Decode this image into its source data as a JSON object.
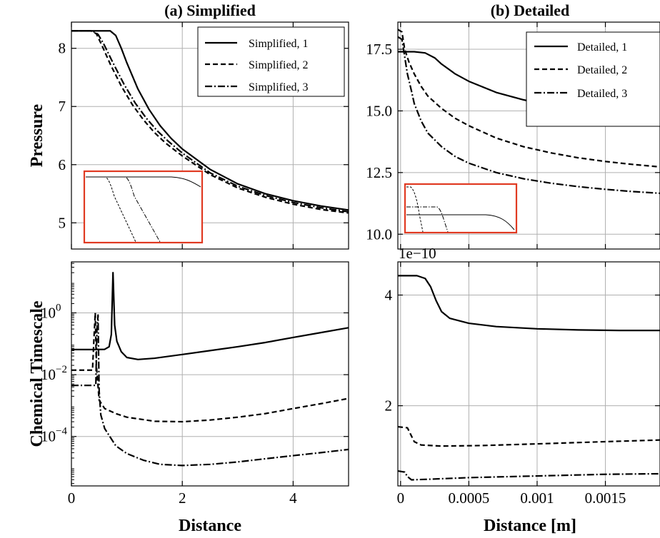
{
  "chart_data": [
    {
      "id": "p1",
      "type": "line",
      "title": "(a) Simplified",
      "xlabel": "",
      "ylabel": "Pressure",
      "xlim": [
        0,
        5
      ],
      "ylim": [
        4.55,
        8.45
      ],
      "xticks": [
        0,
        2,
        4
      ],
      "xtick_labels": [
        "",
        "",
        ""
      ],
      "yticks": [
        5,
        6,
        7,
        8
      ],
      "ytick_labels": [
        "5",
        "6",
        "7",
        "8"
      ],
      "yscale": "linear",
      "grid": true,
      "legend_position": "top-right",
      "series": [
        {
          "name": "Simplified, 1",
          "style": "solid",
          "points": [
            [
              0,
              8.3
            ],
            [
              0.5,
              8.3
            ],
            [
              0.7,
              8.3
            ],
            [
              0.8,
              8.22
            ],
            [
              0.9,
              8.0
            ],
            [
              1.0,
              7.75
            ],
            [
              1.2,
              7.3
            ],
            [
              1.4,
              6.95
            ],
            [
              1.6,
              6.67
            ],
            [
              1.8,
              6.45
            ],
            [
              2.0,
              6.27
            ],
            [
              2.5,
              5.92
            ],
            [
              3.0,
              5.67
            ],
            [
              3.5,
              5.5
            ],
            [
              4.0,
              5.38
            ],
            [
              4.5,
              5.29
            ],
            [
              5.0,
              5.22
            ]
          ]
        },
        {
          "name": "Simplified, 2",
          "style": "dashed",
          "points": [
            [
              0,
              8.3
            ],
            [
              0.35,
              8.3
            ],
            [
              0.45,
              8.25
            ],
            [
              0.55,
              8.05
            ],
            [
              0.7,
              7.73
            ],
            [
              0.9,
              7.35
            ],
            [
              1.1,
              7.03
            ],
            [
              1.3,
              6.77
            ],
            [
              1.5,
              6.55
            ],
            [
              1.7,
              6.37
            ],
            [
              2.0,
              6.15
            ],
            [
              2.5,
              5.83
            ],
            [
              3.0,
              5.6
            ],
            [
              3.5,
              5.44
            ],
            [
              4.0,
              5.32
            ],
            [
              4.5,
              5.23
            ],
            [
              5.0,
              5.17
            ]
          ]
        },
        {
          "name": "Simplified, 3",
          "style": "dashdot",
          "points": [
            [
              0,
              8.3
            ],
            [
              0.38,
              8.3
            ],
            [
              0.48,
              8.24
            ],
            [
              0.58,
              8.08
            ],
            [
              0.75,
              7.75
            ],
            [
              0.95,
              7.38
            ],
            [
              1.15,
              7.06
            ],
            [
              1.35,
              6.8
            ],
            [
              1.55,
              6.58
            ],
            [
              1.75,
              6.4
            ],
            [
              2.0,
              6.2
            ],
            [
              2.5,
              5.86
            ],
            [
              3.0,
              5.63
            ],
            [
              3.5,
              5.47
            ],
            [
              4.0,
              5.35
            ],
            [
              4.5,
              5.26
            ],
            [
              5.0,
              5.19
            ]
          ]
        }
      ]
    },
    {
      "id": "p2",
      "type": "line",
      "title": "(b) Detailed",
      "xlabel": "",
      "ylabel": "",
      "xlim": [
        -2e-05,
        0.0019
      ],
      "ylim": [
        9.4,
        18.6
      ],
      "xticks": [
        0,
        0.0005,
        0.001,
        0.0015
      ],
      "xtick_labels": [
        "",
        "",
        "",
        ""
      ],
      "yticks": [
        10.0,
        12.5,
        15.0,
        17.5
      ],
      "ytick_labels": [
        "10.0",
        "12.5",
        "15.0",
        "17.5"
      ],
      "yscale": "linear",
      "grid": true,
      "legend_position": "top-right",
      "series": [
        {
          "name": "Detailed, 1",
          "style": "solid",
          "points": [
            [
              -2e-05,
              17.4
            ],
            [
              0.0001,
              17.4
            ],
            [
              0.00018,
              17.35
            ],
            [
              0.00025,
              17.15
            ],
            [
              0.0003,
              16.9
            ],
            [
              0.0004,
              16.5
            ],
            [
              0.0005,
              16.2
            ],
            [
              0.0007,
              15.75
            ],
            [
              0.0009,
              15.45
            ],
            [
              0.0011,
              15.2
            ],
            [
              0.0013,
              15.0
            ],
            [
              0.0015,
              14.82
            ],
            [
              0.0017,
              14.67
            ],
            [
              0.0019,
              14.55
            ]
          ]
        },
        {
          "name": "Detailed, 2",
          "style": "dashed",
          "points": [
            [
              -2e-05,
              18.3
            ],
            [
              1e-05,
              18.2
            ],
            [
              3e-05,
              17.5
            ],
            [
              6e-05,
              17.0
            ],
            [
              0.0001,
              16.5
            ],
            [
              0.00015,
              16.0
            ],
            [
              0.0002,
              15.6
            ],
            [
              0.0003,
              15.1
            ],
            [
              0.0004,
              14.7
            ],
            [
              0.0005,
              14.4
            ],
            [
              0.0007,
              13.9
            ],
            [
              0.0009,
              13.55
            ],
            [
              0.0011,
              13.3
            ],
            [
              0.0013,
              13.1
            ],
            [
              0.0015,
              12.95
            ],
            [
              0.0017,
              12.83
            ],
            [
              0.0019,
              12.73
            ]
          ]
        },
        {
          "name": "Detailed, 3",
          "style": "dashdot",
          "points": [
            [
              -2e-05,
              18.0
            ],
            [
              1e-05,
              17.9
            ],
            [
              3e-05,
              17.2
            ],
            [
              5e-05,
              16.5
            ],
            [
              8e-05,
              15.8
            ],
            [
              0.0001,
              15.3
            ],
            [
              0.00015,
              14.6
            ],
            [
              0.0002,
              14.1
            ],
            [
              0.0003,
              13.55
            ],
            [
              0.0004,
              13.15
            ],
            [
              0.0005,
              12.88
            ],
            [
              0.0007,
              12.5
            ],
            [
              0.0009,
              12.25
            ],
            [
              0.0011,
              12.07
            ],
            [
              0.0013,
              11.93
            ],
            [
              0.0015,
              11.82
            ],
            [
              0.0017,
              11.73
            ],
            [
              0.0019,
              11.66
            ]
          ]
        }
      ]
    },
    {
      "id": "p3",
      "type": "line",
      "title": "",
      "xlabel": "Distance",
      "ylabel": "Chemical Timescale",
      "xlim": [
        0,
        5
      ],
      "ylim_log10": [
        -5.6,
        1.65
      ],
      "xticks": [
        0,
        2,
        4
      ],
      "xtick_labels": [
        "0",
        "2",
        "4"
      ],
      "yticks_log10": [
        -4,
        -2,
        0
      ],
      "ytick_labels": [
        "10",
        "10",
        "10"
      ],
      "ytick_exponents": [
        "−4",
        "−2",
        "0"
      ],
      "yscale": "log",
      "grid": true,
      "series": [
        {
          "name": "",
          "style": "solid",
          "points": [
            [
              0,
              0.065
            ],
            [
              0.45,
              0.065
            ],
            [
              0.6,
              0.066
            ],
            [
              0.68,
              0.08
            ],
            [
              0.72,
              0.2
            ],
            [
              0.75,
              20
            ],
            [
              0.78,
              0.4
            ],
            [
              0.82,
              0.12
            ],
            [
              0.9,
              0.055
            ],
            [
              1.0,
              0.036
            ],
            [
              1.2,
              0.031
            ],
            [
              1.5,
              0.034
            ],
            [
              2.0,
              0.045
            ],
            [
              2.5,
              0.06
            ],
            [
              3.0,
              0.08
            ],
            [
              3.5,
              0.11
            ],
            [
              4.0,
              0.16
            ],
            [
              4.5,
              0.23
            ],
            [
              5.0,
              0.33
            ]
          ]
        },
        {
          "name": "",
          "style": "dashed",
          "points": [
            [
              0,
              0.014
            ],
            [
              0.38,
              0.014
            ],
            [
              0.41,
              0.2
            ],
            [
              0.43,
              1.0
            ],
            [
              0.45,
              0.02
            ],
            [
              0.5,
              0.0015
            ],
            [
              0.6,
              0.0008
            ],
            [
              0.8,
              0.00055
            ],
            [
              1.0,
              0.00042
            ],
            [
              1.5,
              0.00031
            ],
            [
              2.0,
              0.0003
            ],
            [
              2.5,
              0.00034
            ],
            [
              3.0,
              0.00042
            ],
            [
              3.5,
              0.00055
            ],
            [
              4.0,
              0.0008
            ],
            [
              4.5,
              0.00115
            ],
            [
              5.0,
              0.0017
            ]
          ]
        },
        {
          "name": "",
          "style": "dashdot",
          "points": [
            [
              0,
              0.0045
            ],
            [
              0.44,
              0.0045
            ],
            [
              0.46,
              0.3
            ],
            [
              0.48,
              0.85
            ],
            [
              0.5,
              0.003
            ],
            [
              0.53,
              0.0005
            ],
            [
              0.6,
              0.00018
            ],
            [
              0.8,
              5e-05
            ],
            [
              1.0,
              2.8e-05
            ],
            [
              1.3,
              1.7e-05
            ],
            [
              1.6,
              1.25e-05
            ],
            [
              2.0,
              1.15e-05
            ],
            [
              2.5,
              1.25e-05
            ],
            [
              3.0,
              1.5e-05
            ],
            [
              3.5,
              1.9e-05
            ],
            [
              4.0,
              2.4e-05
            ],
            [
              4.5,
              3e-05
            ],
            [
              5.0,
              3.8e-05
            ]
          ]
        }
      ]
    },
    {
      "id": "p4",
      "type": "line",
      "title": "",
      "xlabel": "Distance [m]",
      "ylabel": "",
      "offset_text": "1e−10",
      "xlim": [
        -2e-05,
        0.0019
      ],
      "ylim": [
        0.55,
        4.6
      ],
      "xticks": [
        0,
        0.0005,
        0.001,
        0.0015
      ],
      "xtick_labels": [
        "0",
        "0.0005",
        "0.001",
        "0.0015"
      ],
      "yticks": [
        2,
        4
      ],
      "ytick_labels": [
        "2",
        "4"
      ],
      "yscale": "linear",
      "grid": true,
      "series": [
        {
          "name": "",
          "style": "solid",
          "points": [
            [
              -2e-05,
              4.35
            ],
            [
              0.00012,
              4.35
            ],
            [
              0.00018,
              4.3
            ],
            [
              0.00022,
              4.15
            ],
            [
              0.00026,
              3.9
            ],
            [
              0.0003,
              3.7
            ],
            [
              0.00036,
              3.58
            ],
            [
              0.0005,
              3.49
            ],
            [
              0.0007,
              3.43
            ],
            [
              0.001,
              3.39
            ],
            [
              0.0013,
              3.37
            ],
            [
              0.0016,
              3.36
            ],
            [
              0.0019,
              3.36
            ]
          ]
        },
        {
          "name": "",
          "style": "dashed",
          "points": [
            [
              -2e-05,
              1.62
            ],
            [
              5e-05,
              1.6
            ],
            [
              7e-05,
              1.5
            ],
            [
              0.0001,
              1.35
            ],
            [
              0.00015,
              1.29
            ],
            [
              0.0003,
              1.27
            ],
            [
              0.0006,
              1.28
            ],
            [
              0.001,
              1.31
            ],
            [
              0.0015,
              1.35
            ],
            [
              0.0019,
              1.38
            ]
          ]
        },
        {
          "name": "",
          "style": "dashdot",
          "points": [
            [
              -2e-05,
              0.82
            ],
            [
              3e-05,
              0.8
            ],
            [
              5e-05,
              0.72
            ],
            [
              8e-05,
              0.66
            ],
            [
              0.0002,
              0.67
            ],
            [
              0.0005,
              0.7
            ],
            [
              0.001,
              0.73
            ],
            [
              0.0015,
              0.76
            ],
            [
              0.0019,
              0.77
            ]
          ]
        }
      ]
    }
  ]
}
